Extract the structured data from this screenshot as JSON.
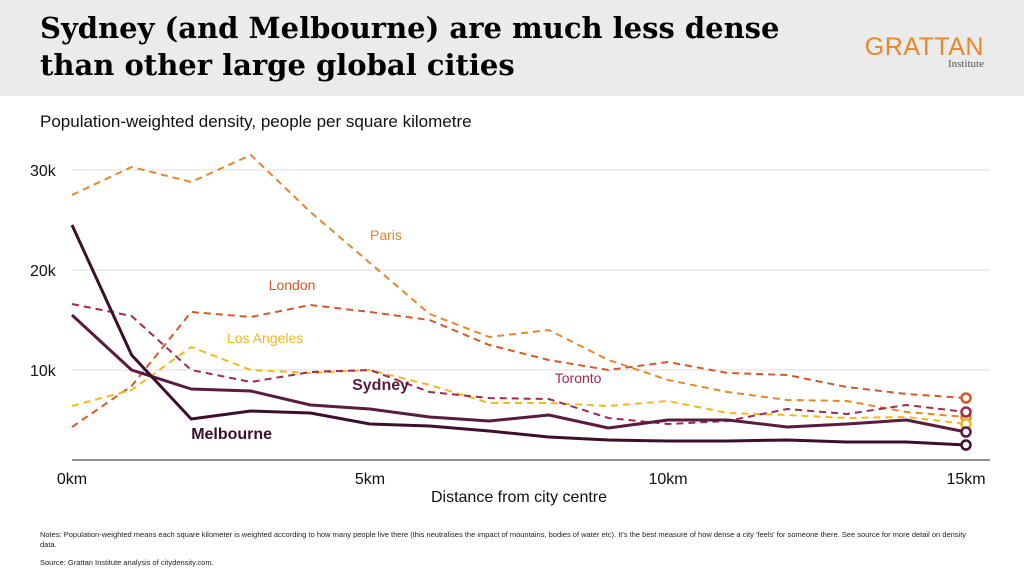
{
  "header": {
    "title": "Sydney (and Melbourne) are much less dense than other large global cities",
    "brand_name": "GRATTAN",
    "brand_sub": "Institute"
  },
  "subtitle": "Population-weighted density, people per square kilometre",
  "chart_data": {
    "type": "line",
    "title": "Population-weighted density, people per square kilometre",
    "xlabel": "Distance from city centre",
    "ylabel": "",
    "xlim": [
      0,
      15
    ],
    "ylim": [
      0,
      32000
    ],
    "x_ticks": [
      0,
      5,
      10,
      15
    ],
    "x_tick_labels": [
      "0km",
      "5km",
      "10km",
      "15km"
    ],
    "y_ticks": [
      10000,
      20000,
      30000
    ],
    "y_tick_labels": [
      "10k",
      "20k",
      "30k"
    ],
    "grid": true,
    "x": [
      0,
      1,
      2,
      3,
      4,
      5,
      6,
      7,
      8,
      9,
      10,
      11,
      12,
      13,
      14,
      15
    ],
    "series": [
      {
        "name": "Paris",
        "color": "#e8862a",
        "style": "dashed",
        "values": [
          27500,
          30300,
          28800,
          31500,
          25800,
          20700,
          15600,
          13300,
          14000,
          11000,
          9000,
          7800,
          7000,
          6900,
          5800,
          5300
        ]
      },
      {
        "name": "London",
        "color": "#d4582a",
        "style": "dashed",
        "values": [
          4300,
          8400,
          15800,
          15300,
          16500,
          15800,
          15000,
          12500,
          11000,
          10000,
          10800,
          9700,
          9500,
          8300,
          7600,
          7200
        ]
      },
      {
        "name": "Los Angeles",
        "color": "#f2b81e",
        "style": "dashed",
        "values": [
          6400,
          8000,
          12300,
          10000,
          9700,
          10000,
          8500,
          6700,
          6700,
          6400,
          6900,
          5700,
          5500,
          5200,
          5300,
          4600
        ]
      },
      {
        "name": "Toronto",
        "color": "#a22a4e",
        "style": "dashed",
        "values": [
          16600,
          15400,
          10000,
          8800,
          9800,
          10000,
          7800,
          7200,
          7100,
          5200,
          4600,
          4900,
          6100,
          5600,
          6500,
          5800
        ]
      },
      {
        "name": "Sydney",
        "color": "#5a1c3e",
        "style": "solid",
        "values": [
          15500,
          10000,
          8100,
          7900,
          6500,
          6100,
          5300,
          4900,
          5500,
          4200,
          5000,
          5000,
          4300,
          4600,
          5000,
          3800
        ]
      },
      {
        "name": "Melbourne",
        "color": "#3c0f2d",
        "style": "solid",
        "values": [
          24500,
          11500,
          5100,
          5900,
          5700,
          4600,
          4400,
          3900,
          3300,
          3000,
          2900,
          2900,
          3000,
          2800,
          2800,
          2500
        ]
      }
    ],
    "annotations": [
      "Paris",
      "London",
      "Los Angeles",
      "Toronto",
      "Sydney",
      "Melbourne"
    ]
  },
  "notes": "Notes: Population-weighted means each square kilometer is weighted according to how many people live there (this neutralises the impact of mountains, bodies of water etc). It's the best measure of how dense a city 'feels' for someone there. See source for more detail on density data.",
  "source": "Source: Grattan Institute analysis of citydensity.com."
}
